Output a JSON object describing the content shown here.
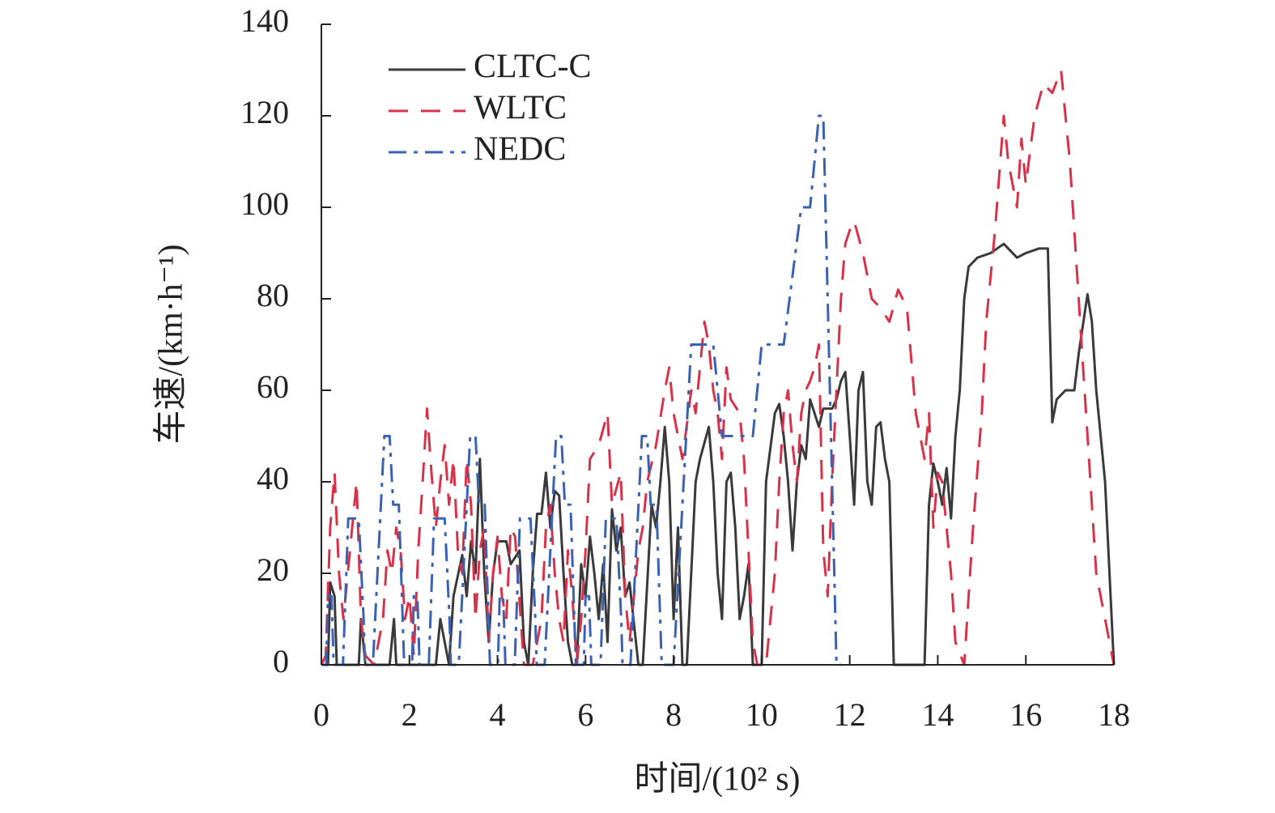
{
  "chart_data": {
    "type": "line",
    "xlabel": "时间/(10² s)",
    "ylabel": "车速/(km·h⁻¹)",
    "xlim": [
      0,
      18
    ],
    "ylim": [
      0,
      140
    ],
    "xticks": [
      0,
      2,
      4,
      6,
      8,
      10,
      12,
      14,
      16,
      18
    ],
    "yticks": [
      0,
      20,
      40,
      60,
      80,
      100,
      120,
      140
    ],
    "legend": "upper left",
    "series": [
      {
        "name": "CLTC-C",
        "color": "#3a3a3c",
        "style": "solid",
        "x": [
          0,
          0.15,
          0.2,
          0.3,
          0.35,
          0.85,
          0.9,
          1.0,
          1.55,
          1.65,
          1.7,
          2.6,
          2.7,
          2.8,
          2.9,
          3.0,
          3.2,
          3.3,
          3.4,
          3.5,
          3.6,
          3.7,
          3.8,
          3.9,
          4.0,
          4.2,
          4.3,
          4.5,
          4.6,
          4.7,
          4.8,
          4.9,
          5.0,
          5.1,
          5.2,
          5.3,
          5.4,
          5.5,
          5.6,
          5.7,
          5.8,
          5.9,
          6.0,
          6.1,
          6.2,
          6.3,
          6.4,
          6.5,
          6.6,
          6.7,
          6.8,
          6.9,
          7.0,
          7.2,
          7.3,
          7.5,
          7.6,
          7.7,
          7.8,
          7.9,
          8.0,
          8.1,
          8.2,
          8.3,
          8.5,
          8.6,
          8.8,
          8.9,
          9.0,
          9.1,
          9.2,
          9.3,
          9.4,
          9.5,
          9.6,
          9.7,
          9.8,
          10.0,
          10.1,
          10.3,
          10.4,
          10.5,
          10.6,
          10.7,
          10.8,
          10.9,
          11.0,
          11.1,
          11.2,
          11.3,
          11.4,
          11.6,
          11.7,
          11.8,
          11.9,
          12.0,
          12.1,
          12.2,
          12.3,
          12.4,
          12.5,
          12.6,
          12.7,
          12.8,
          12.9,
          13.0,
          13.7,
          13.8,
          13.9,
          14.0,
          14.1,
          14.2,
          14.3,
          14.4,
          14.5,
          14.6,
          14.7,
          14.8,
          14.9,
          15.2,
          15.5,
          15.8,
          16.0,
          16.3,
          16.5,
          16.6,
          16.7,
          16.9,
          17.1,
          17.2,
          17.4,
          17.5,
          17.6,
          17.8,
          18.0
        ],
        "values": [
          0,
          0,
          18,
          15,
          0,
          0,
          10,
          0,
          0,
          10,
          0,
          0,
          10,
          5,
          0,
          15,
          24,
          15,
          27,
          20,
          45,
          20,
          5,
          20,
          27,
          27,
          22,
          25,
          5,
          0,
          20,
          33,
          33,
          42,
          30,
          38,
          37,
          20,
          5,
          0,
          0,
          22,
          15,
          28,
          20,
          10,
          22,
          5,
          34,
          25,
          30,
          15,
          18,
          0,
          0,
          35,
          30,
          40,
          52,
          40,
          10,
          30,
          0,
          0,
          40,
          45,
          52,
          40,
          20,
          10,
          40,
          42,
          30,
          10,
          15,
          22,
          0,
          0,
          40,
          55,
          57,
          50,
          40,
          25,
          40,
          48,
          45,
          58,
          55,
          52,
          56,
          56,
          58,
          62,
          64,
          50,
          35,
          60,
          64,
          40,
          35,
          52,
          53,
          45,
          40,
          0,
          0,
          35,
          44,
          40,
          35,
          43,
          32,
          50,
          60,
          80,
          87,
          88,
          89,
          90,
          92,
          89,
          90,
          91,
          91,
          53,
          58,
          60,
          60,
          68,
          81,
          75,
          60,
          40,
          0
        ]
      },
      {
        "name": "WLTC",
        "color": "#d6334a",
        "style": "dash",
        "x": [
          0,
          0.1,
          0.2,
          0.3,
          0.4,
          0.5,
          0.6,
          0.8,
          0.9,
          1.0,
          1.2,
          1.4,
          1.5,
          1.6,
          1.7,
          1.8,
          1.9,
          2.0,
          2.1,
          2.2,
          2.3,
          2.4,
          2.5,
          2.6,
          2.7,
          2.8,
          2.9,
          3.0,
          3.1,
          3.2,
          3.3,
          3.4,
          3.5,
          3.6,
          3.7,
          3.8,
          3.9,
          4.0,
          4.1,
          4.2,
          4.3,
          4.4,
          4.6,
          4.8,
          5.0,
          5.1,
          5.2,
          5.3,
          5.4,
          5.5,
          5.6,
          5.7,
          5.8,
          5.9,
          6.0,
          6.1,
          6.3,
          6.5,
          6.6,
          6.8,
          6.9,
          7.0,
          7.2,
          7.3,
          7.4,
          7.6,
          7.8,
          7.9,
          8.0,
          8.2,
          8.4,
          8.5,
          8.6,
          8.7,
          8.8,
          8.9,
          9.0,
          9.1,
          9.2,
          9.3,
          9.5,
          9.6,
          9.7,
          9.8,
          9.9,
          10.1,
          10.3,
          10.4,
          10.5,
          10.6,
          10.7,
          10.8,
          10.9,
          11.0,
          11.1,
          11.2,
          11.3,
          11.4,
          11.5,
          11.6,
          11.7,
          11.8,
          11.9,
          12.0,
          12.1,
          12.3,
          12.5,
          12.7,
          12.9,
          13.1,
          13.3,
          13.5,
          13.7,
          13.8,
          13.9,
          14.0,
          14.1,
          14.2,
          14.3,
          14.4,
          14.6,
          14.8,
          15.0,
          15.1,
          15.3,
          15.5,
          15.6,
          15.7,
          15.8,
          15.9,
          16.0,
          16.2,
          16.4,
          16.6,
          16.8,
          17.0,
          17.2,
          17.4,
          17.6,
          18.0
        ],
        "values": [
          0,
          2,
          30,
          42,
          20,
          10,
          20,
          40,
          10,
          2,
          0,
          10,
          25,
          20,
          30,
          25,
          10,
          15,
          2,
          25,
          40,
          56,
          42,
          30,
          40,
          48,
          35,
          45,
          25,
          20,
          45,
          35,
          10,
          25,
          30,
          5,
          20,
          28,
          15,
          10,
          30,
          28,
          0,
          0,
          10,
          30,
          35,
          20,
          10,
          5,
          25,
          15,
          0,
          10,
          25,
          45,
          48,
          55,
          35,
          42,
          15,
          5,
          25,
          30,
          40,
          48,
          60,
          65,
          55,
          45,
          60,
          55,
          65,
          75,
          70,
          60,
          55,
          45,
          65,
          58,
          55,
          45,
          25,
          5,
          0,
          0,
          20,
          40,
          55,
          60,
          48,
          40,
          55,
          60,
          62,
          65,
          70,
          25,
          15,
          40,
          60,
          80,
          92,
          95,
          97,
          90,
          80,
          78,
          75,
          82,
          78,
          55,
          45,
          55,
          30,
          42,
          40,
          30,
          20,
          5,
          0,
          30,
          55,
          75,
          95,
          120,
          110,
          105,
          100,
          115,
          105,
          120,
          127,
          125,
          130,
          110,
          80,
          50,
          20,
          0
        ]
      },
      {
        "name": "NEDC",
        "color": "#3a62b0",
        "style": "dashdot",
        "x": [
          0,
          0.11,
          0.15,
          0.23,
          0.28,
          0.49,
          0.61,
          0.85,
          0.96,
          0.99,
          1.17,
          1.43,
          1.55,
          1.63,
          1.76,
          1.88,
          1.95,
          2.06,
          2.1,
          2.18,
          2.23,
          2.44,
          2.56,
          2.8,
          2.91,
          2.94,
          3.12,
          3.38,
          3.5,
          3.58,
          3.71,
          3.83,
          3.9,
          4.01,
          4.05,
          4.13,
          4.18,
          4.39,
          4.51,
          4.75,
          4.86,
          4.89,
          5.07,
          5.33,
          5.45,
          5.53,
          5.66,
          5.78,
          5.85,
          5.96,
          6.0,
          6.08,
          6.13,
          6.34,
          6.46,
          6.7,
          6.81,
          6.84,
          7.02,
          7.28,
          7.4,
          7.48,
          7.61,
          7.73,
          8.0,
          8.4,
          8.9,
          9.1,
          9.8,
          10.0,
          10.5,
          10.9,
          11.1,
          11.3,
          11.4,
          11.7,
          11.8
        ],
        "values": [
          0,
          0,
          15,
          15,
          0,
          0,
          32,
          32,
          10,
          0,
          0,
          50,
          50,
          35,
          35,
          0,
          0,
          0,
          15,
          15,
          0,
          0,
          32,
          32,
          10,
          0,
          0,
          50,
          50,
          35,
          35,
          0,
          0,
          0,
          15,
          15,
          0,
          0,
          32,
          32,
          10,
          0,
          0,
          50,
          50,
          35,
          35,
          0,
          0,
          0,
          15,
          15,
          0,
          0,
          32,
          32,
          10,
          0,
          0,
          50,
          50,
          35,
          35,
          0,
          0,
          70,
          70,
          50,
          50,
          70,
          70,
          100,
          100,
          120,
          120,
          0,
          0
        ]
      }
    ]
  }
}
